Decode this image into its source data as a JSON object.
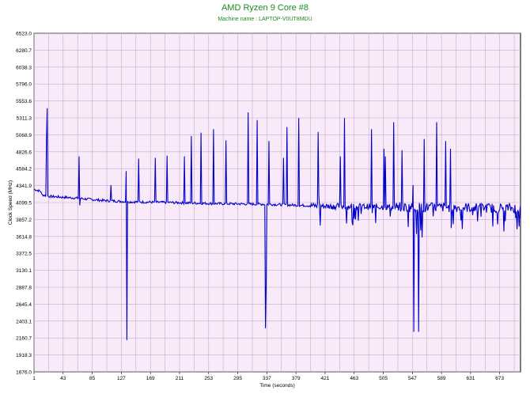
{
  "chart_data": {
    "type": "line",
    "title": "AMD Ryzen 9 Core #8",
    "subtitle": "Machine name : LAPTOP-V0UT8MDU",
    "xlabel": "Time (seconds)",
    "ylabel": "Clock Speed (MHz)",
    "xlim": [
      1,
      703
    ],
    "ylim": [
      1676.0,
      6523.0
    ],
    "x_ticks": [
      1,
      43,
      85,
      127,
      169,
      211,
      253,
      295,
      337,
      379,
      421,
      463,
      505,
      547,
      589,
      631,
      673
    ],
    "y_ticks": [
      "1676.0",
      "1918.3",
      "2160.7",
      "2403.1",
      "2645.4",
      "2887.8",
      "3130.1",
      "3372.5",
      "3614.8",
      "3857.2",
      "4099.5",
      "4341.9",
      "4584.2",
      "4826.6",
      "5068.9",
      "5311.3",
      "5553.6",
      "5796.0",
      "6038.3",
      "6280.7",
      "6523.0"
    ],
    "grid": true,
    "colors": {
      "line": "#0000c8",
      "plot_bg": "#f8eaf8",
      "grid": "#c9a9c9",
      "title": "#1a8a1a"
    },
    "baseline_points": [
      [
        1,
        4250
      ],
      [
        20,
        4190
      ],
      [
        60,
        4165
      ],
      [
        100,
        4130
      ],
      [
        140,
        4110
      ],
      [
        200,
        4100
      ],
      [
        260,
        4085
      ],
      [
        340,
        4075
      ],
      [
        400,
        4055
      ],
      [
        440,
        4045
      ],
      [
        500,
        4040
      ],
      [
        560,
        4030
      ],
      [
        620,
        4030
      ],
      [
        670,
        4020
      ],
      [
        703,
        4020
      ]
    ],
    "spikes": [
      [
        20,
        5450
      ],
      [
        19,
        4990
      ],
      [
        66,
        4760
      ],
      [
        67,
        4060
      ],
      [
        112,
        4350
      ],
      [
        134,
        4550
      ],
      [
        135,
        2130
      ],
      [
        152,
        4730
      ],
      [
        176,
        4740
      ],
      [
        193,
        4770
      ],
      [
        218,
        4760
      ],
      [
        228,
        5050
      ],
      [
        242,
        5100
      ],
      [
        260,
        5150
      ],
      [
        278,
        4990
      ],
      [
        310,
        5390
      ],
      [
        323,
        5280
      ],
      [
        340,
        4980
      ],
      [
        361,
        4740
      ],
      [
        366,
        5180
      ],
      [
        383,
        5310
      ],
      [
        411,
        5110
      ],
      [
        412,
        4200
      ],
      [
        443,
        4760
      ],
      [
        449,
        5310
      ],
      [
        488,
        5150
      ],
      [
        489,
        3950
      ],
      [
        506,
        4870
      ],
      [
        508,
        4760
      ],
      [
        509,
        4000
      ],
      [
        520,
        5250
      ],
      [
        515,
        3900
      ],
      [
        532,
        4850
      ],
      [
        541,
        3750
      ],
      [
        548,
        4350
      ],
      [
        549,
        2250
      ],
      [
        553,
        3650
      ],
      [
        559,
        3700
      ],
      [
        561,
        3600
      ],
      [
        564,
        5010
      ],
      [
        582,
        5250
      ],
      [
        595,
        4980
      ],
      [
        602,
        4870
      ],
      [
        606,
        3790
      ],
      [
        619,
        3720
      ]
    ],
    "dips": [
      [
        335,
        2300
      ],
      [
        336,
        2900
      ],
      [
        414,
        3770
      ],
      [
        452,
        3800
      ],
      [
        460,
        3820
      ],
      [
        556,
        2250
      ]
    ]
  }
}
